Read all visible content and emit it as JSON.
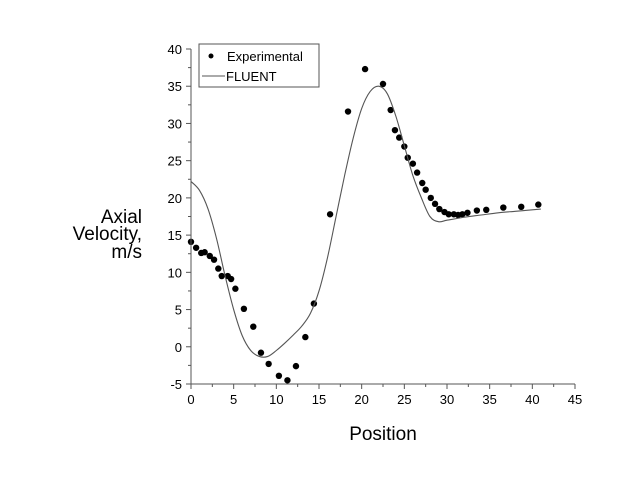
{
  "chart_data": {
    "type": "scatter",
    "title": "",
    "xlabel": "Position",
    "ylabel": [
      "Axial",
      "Velocity,",
      "m/s"
    ],
    "xlim": [
      0,
      45
    ],
    "ylim": [
      -5,
      40
    ],
    "xticks": [
      0,
      5,
      10,
      15,
      20,
      25,
      30,
      35,
      40,
      45
    ],
    "yticks": [
      -5,
      0,
      5,
      10,
      15,
      20,
      25,
      30,
      35,
      40
    ],
    "grid": false,
    "legend_position": "upper-left",
    "legend": [
      "Experimental",
      "FLUENT"
    ],
    "series": [
      {
        "name": "Experimental",
        "style": "markers",
        "color": "#000000",
        "x": [
          0,
          0.6,
          1.2,
          1.6,
          2.2,
          2.7,
          3.2,
          3.6,
          4.3,
          4.7,
          5.2,
          6.2,
          7.3,
          8.2,
          9.1,
          10.3,
          11.3,
          12.3,
          13.4,
          14.4,
          16.3,
          18.4,
          20.4,
          22.5,
          23.4,
          23.9,
          24.4,
          25.0,
          25.4,
          26.0,
          26.5,
          27.1,
          27.5,
          28.1,
          28.6,
          29.1,
          29.7,
          30.2,
          30.8,
          31.3,
          31.8,
          32.4,
          33.5,
          34.6,
          36.6,
          38.7,
          40.7
        ],
        "y": [
          14.1,
          13.3,
          12.6,
          12.7,
          12.2,
          11.7,
          10.5,
          9.5,
          9.5,
          9.1,
          7.8,
          5.1,
          2.7,
          -0.8,
          -2.3,
          -3.9,
          -4.5,
          -2.6,
          1.3,
          5.8,
          17.8,
          31.6,
          37.3,
          35.3,
          31.8,
          29.1,
          28.1,
          26.9,
          25.4,
          24.6,
          23.4,
          22.0,
          21.1,
          20.0,
          19.2,
          18.5,
          18.1,
          17.8,
          17.8,
          17.7,
          17.8,
          18.0,
          18.3,
          18.4,
          18.7,
          18.8,
          19.1
        ]
      },
      {
        "name": "FLUENT",
        "style": "line",
        "color": "#555555",
        "x": [
          0,
          1,
          2,
          3,
          4,
          5,
          6,
          7,
          8,
          9,
          10,
          11,
          12,
          13,
          14,
          15,
          16,
          17,
          18,
          19,
          20,
          21,
          22,
          23,
          24,
          25,
          26,
          27,
          28,
          29,
          30,
          32,
          34,
          36,
          38,
          40,
          41
        ],
        "y": [
          22.2,
          21.0,
          18.5,
          14.5,
          9.5,
          5.0,
          1.5,
          -0.5,
          -1.3,
          -1.3,
          -0.5,
          0.5,
          1.6,
          2.8,
          4.5,
          7.5,
          12.0,
          17.5,
          23.0,
          28.0,
          32.0,
          34.3,
          35.0,
          34.0,
          31.0,
          27.0,
          23.0,
          20.0,
          17.5,
          16.8,
          17.0,
          17.4,
          17.7,
          18.0,
          18.2,
          18.4,
          18.5
        ]
      }
    ]
  },
  "axes": {
    "x_title": "Position",
    "y_title_lines": [
      "Axial",
      "Velocity,",
      "m/s"
    ]
  },
  "legend": {
    "items": [
      {
        "label": "Experimental",
        "marker": "dot"
      },
      {
        "label": "FLUENT",
        "marker": "line"
      }
    ]
  }
}
